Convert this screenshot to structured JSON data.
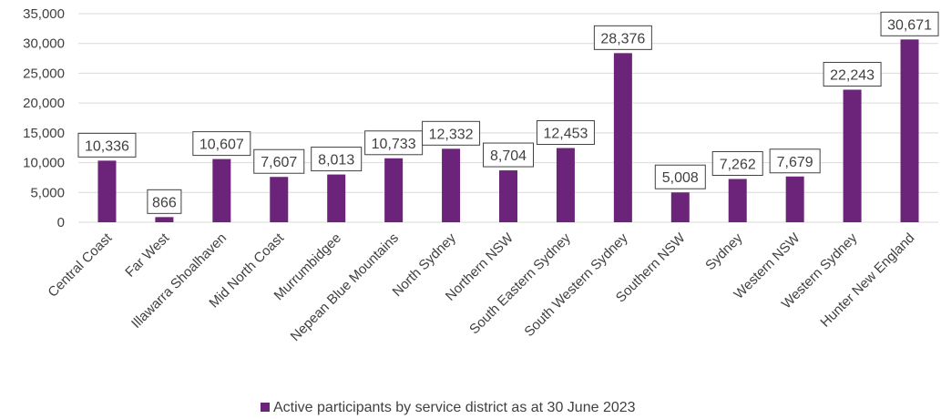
{
  "chart_data": {
    "type": "bar",
    "categories": [
      "Central Coast",
      "Far West",
      "Illawarra Shoalhaven",
      "Mid North Coast",
      "Murrumbidgee",
      "Nepean Blue Mountains",
      "North Sydney",
      "Northern NSW",
      "South Eastern Sydney",
      "South Western Sydney",
      "Southern NSW",
      "Sydney",
      "Western NSW",
      "Western Sydney",
      "Hunter New England"
    ],
    "series": [
      {
        "name": "Active participants by service district as at 30 June 2023",
        "values": [
          10336,
          866,
          10607,
          7607,
          8013,
          10733,
          12332,
          8704,
          12453,
          28376,
          5008,
          7262,
          7679,
          22243,
          30671
        ],
        "labels": [
          "10,336",
          "866",
          "10,607",
          "7,607",
          "8,013",
          "10,733",
          "12,332",
          "8,704",
          "12,453",
          "28,376",
          "5,008",
          "7,262",
          "7,679",
          "22,243",
          "30,671"
        ]
      }
    ],
    "y_ticks": [
      "0",
      "5,000",
      "10,000",
      "15,000",
      "20,000",
      "25,000",
      "30,000",
      "35,000"
    ],
    "ylim": [
      0,
      35000
    ],
    "grid": true,
    "legend_position": "bottom",
    "colors": {
      "bar": "#6b2479",
      "grid": "#d9d9d9",
      "text": "#404040"
    }
  }
}
